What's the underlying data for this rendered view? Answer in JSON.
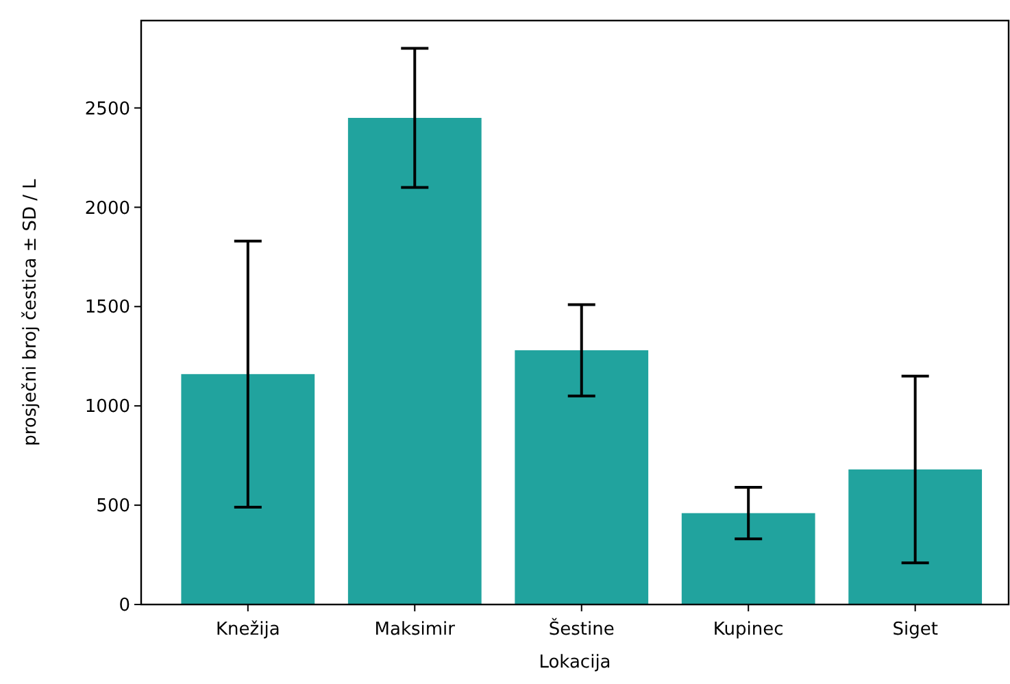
{
  "chart_data": {
    "type": "bar",
    "xlabel": "Lokacija",
    "ylabel": "prosječni broj čestica ± SD / L",
    "categories": [
      "Knežija",
      "Maksimir",
      "Šestine",
      "Kupinec",
      "Siget"
    ],
    "values": [
      1160,
      2450,
      1280,
      460,
      680
    ],
    "errors": [
      670,
      350,
      230,
      130,
      470
    ],
    "color": "#21a39e",
    "ylim": [
      0,
      2940
    ],
    "yticks": [
      0,
      500,
      1000,
      1500,
      2000,
      2500
    ],
    "grid": false
  }
}
